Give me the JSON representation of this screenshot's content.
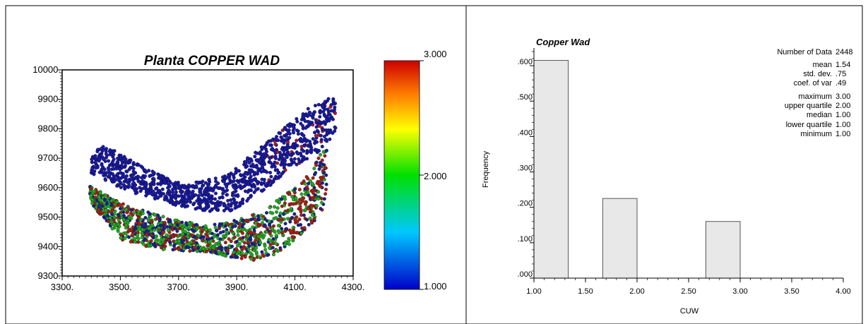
{
  "chart_data": [
    {
      "type": "scatter",
      "title": "Planta COPPER WAD",
      "xlabel": "",
      "ylabel": "",
      "xlim": [
        3300,
        4300
      ],
      "ylim": [
        9300,
        10000
      ],
      "x_ticks": [
        3300,
        3500,
        3700,
        3900,
        4100,
        4300
      ],
      "x_tick_labels": [
        "3300.",
        "3500.",
        "3700.",
        "3900.",
        "4100.",
        "4300."
      ],
      "y_ticks": [
        9300,
        9400,
        9500,
        9600,
        9700,
        9800,
        9900,
        10000
      ],
      "y_tick_labels": [
        "9300.",
        "9400.",
        "9500.",
        "9600.",
        "9700.",
        "9800.",
        "9900.",
        "10000."
      ],
      "colorbar": {
        "min": 1,
        "max": 3,
        "tick_labels": [
          "3.000",
          "2.000",
          "1.000"
        ],
        "colors": [
          "#0000c8",
          "#00c8ff",
          "#00e000",
          "#ffff00",
          "#ff8000",
          "#cc0000"
        ]
      },
      "point_colors": {
        "low": "#1a1a9e",
        "mid": "#22aa22",
        "high": "#b01818"
      },
      "point_count": 2448
    },
    {
      "type": "bar",
      "title": "Copper Wad",
      "xlabel": "CUW",
      "ylabel": "Frequency",
      "xlim": [
        1.0,
        4.0
      ],
      "ylim": [
        0,
        0.65
      ],
      "x_tick_labels": [
        "1.00",
        "1.50",
        "2.00",
        "2.50",
        "3.00",
        "3.50",
        "4.00"
      ],
      "y_tick_labels": [
        ".000",
        ".100",
        ".200",
        ".300",
        ".400",
        ".500",
        ".600"
      ],
      "bins": [
        {
          "from": 1.0,
          "to": 1.333,
          "value": 0.615
        },
        {
          "from": 1.667,
          "to": 2.0,
          "value": 0.225
        },
        {
          "from": 2.667,
          "to": 3.0,
          "value": 0.16
        }
      ],
      "bar_color": "#e8e8e8",
      "stats": [
        {
          "label": "Number of Data",
          "value": "2448"
        },
        {
          "label": "mean",
          "value": "1.54"
        },
        {
          "label": "std. dev.",
          "value": ".75"
        },
        {
          "label": "coef. of var",
          "value": ".49"
        },
        {
          "label": "maximum",
          "value": "3.00"
        },
        {
          "label": "upper quartile",
          "value": "2.00"
        },
        {
          "label": "median",
          "value": "1.00"
        },
        {
          "label": "lower quartile",
          "value": "1.00"
        },
        {
          "label": "minimum",
          "value": "1.00"
        }
      ]
    }
  ]
}
